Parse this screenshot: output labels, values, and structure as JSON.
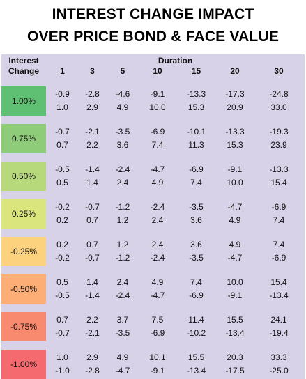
{
  "title": {
    "line1": "INTEREST CHANGE IMPACT",
    "line2": "OVER PRICE BOND & FACE VALUE"
  },
  "header": {
    "interest_label_1": "Interest",
    "interest_label_2": "Change",
    "duration_label": "Duration"
  },
  "durations": [
    "1",
    "3",
    "5",
    "10",
    "15",
    "20",
    "30"
  ],
  "rows": [
    {
      "change": "1.00%",
      "color": "#5fbf72",
      "line1": [
        "-0.9",
        "-2.8",
        "-4.6",
        "-9.1",
        "-13.3",
        "-17.3",
        "-24.8"
      ],
      "line2": [
        "1.0",
        "2.9",
        "4.9",
        "10.0",
        "15.3",
        "20.9",
        "33.0"
      ]
    },
    {
      "change": "0.75%",
      "color": "#8fcc7a",
      "line1": [
        "-0.7",
        "-2.1",
        "-3.5",
        "-6.9",
        "-10.1",
        "-13.3",
        "-19.3"
      ],
      "line2": [
        "0.7",
        "2.2",
        "3.6",
        "7.4",
        "11.3",
        "15.3",
        "23.9"
      ]
    },
    {
      "change": "0.50%",
      "color": "#b7d97c",
      "line1": [
        "-0.5",
        "-1.4",
        "-2.4",
        "-4.7",
        "-6.9",
        "-9.1",
        "-13.3"
      ],
      "line2": [
        "0.5",
        "1.4",
        "2.4",
        "4.9",
        "7.4",
        "10.0",
        "15.4"
      ]
    },
    {
      "change": "0.25%",
      "color": "#dbe57e",
      "line1": [
        "-0.2",
        "-0.7",
        "-1.2",
        "-2.4",
        "-3.5",
        "-4.7",
        "-6.9"
      ],
      "line2": [
        "0.2",
        "0.7",
        "1.2",
        "2.4",
        "3.6",
        "4.9",
        "7.4"
      ]
    },
    {
      "change": "-0.25%",
      "color": "#fdd27f",
      "line1": [
        "0.2",
        "0.7",
        "1.2",
        "2.4",
        "3.6",
        "4.9",
        "7.4"
      ],
      "line2": [
        "-0.2",
        "-0.7",
        "-1.2",
        "-2.4",
        "-3.5",
        "-4.7",
        "-6.9"
      ]
    },
    {
      "change": "-0.50%",
      "color": "#fcae76",
      "line1": [
        "0.5",
        "1.4",
        "2.4",
        "4.9",
        "7.4",
        "10.0",
        "15.4"
      ],
      "line2": [
        "-0.5",
        "-1.4",
        "-2.4",
        "-4.7",
        "-6.9",
        "-9.1",
        "-13.4"
      ]
    },
    {
      "change": "-0.75%",
      "color": "#f88a70",
      "line1": [
        "0.7",
        "2.2",
        "3.7",
        "7.5",
        "11.4",
        "15.5",
        "24.1"
      ],
      "line2": [
        "-0.7",
        "-2.1",
        "-3.5",
        "-6.9",
        "-10.2",
        "-13.4",
        "-19.4"
      ]
    },
    {
      "change": "-1.00%",
      "color": "#f46a6e",
      "line1": [
        "1.0",
        "2.9",
        "4.9",
        "10.1",
        "15.5",
        "20.3",
        "33.3"
      ],
      "line2": [
        "-1.0",
        "-2.8",
        "-4.7",
        "-9.1",
        "-13.4",
        "-17.5",
        "-25.0"
      ]
    }
  ]
}
